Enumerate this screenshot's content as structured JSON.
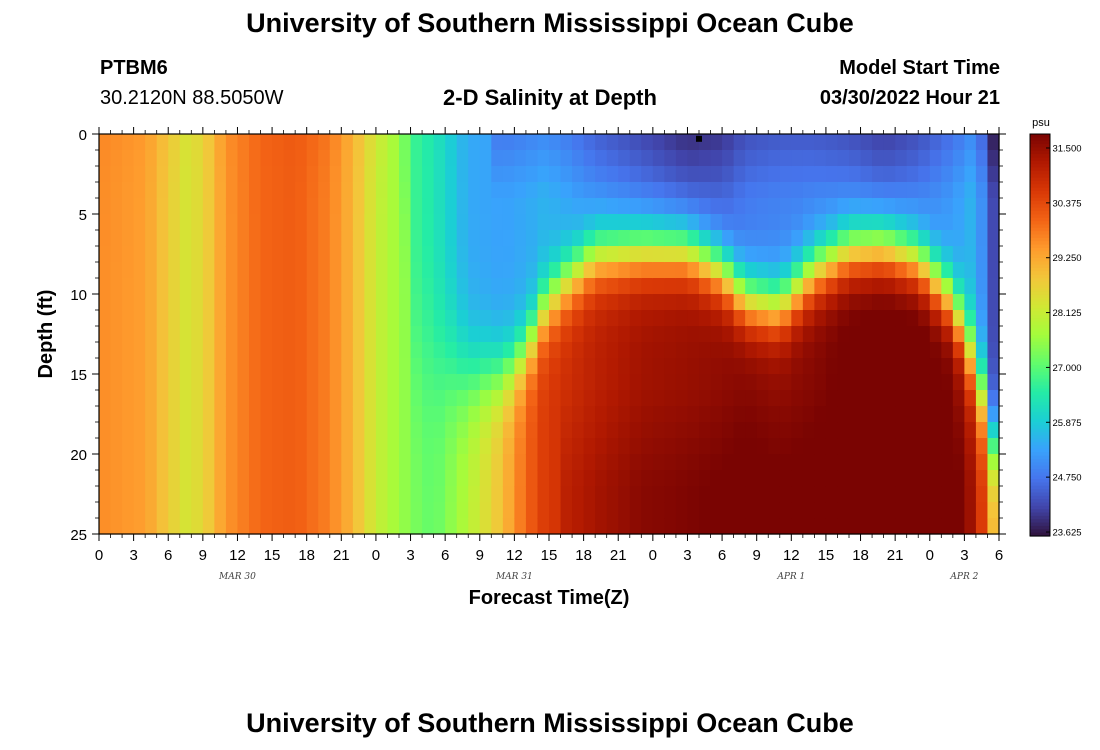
{
  "page": {
    "title_top": "University of Southern Mississippi Ocean Cube",
    "title_bottom": "University of Southern Mississippi Ocean Cube",
    "station_id": "PTBM6",
    "station_coords": "30.2120N  88.5050W",
    "plot_title": "2-D Salinity at Depth",
    "model_start_label": "Model Start Time",
    "model_start_value": "03/30/2022 Hour 21"
  },
  "colors": {
    "background": "#ffffff",
    "palette": [
      "#30123b",
      "#4145ab",
      "#4675ed",
      "#39a2fc",
      "#1bcfd4",
      "#24eca6",
      "#61fc6c",
      "#a4fc3b",
      "#d1e834",
      "#f3c63a",
      "#fe9b2d",
      "#f36315",
      "#d93806",
      "#b11901",
      "#7a0402"
    ]
  },
  "chart_data": {
    "type": "heatmap",
    "xlabel": "Forecast Time(Z)",
    "ylabel": "Depth (ft)",
    "colorbar_label": "psu",
    "colorbar_range": [
      23.625,
      31.5
    ],
    "colorbar_ticks": [
      "31.500",
      "30.375",
      "29.250",
      "28.125",
      "27.000",
      "25.875",
      "24.750",
      "23.625"
    ],
    "x_hours_range": [
      0,
      78
    ],
    "x_ticks": [
      "0",
      "3",
      "6",
      "9",
      "12",
      "15",
      "18",
      "21",
      "0",
      "3",
      "6",
      "9",
      "12",
      "15",
      "18",
      "21",
      "0",
      "3",
      "6",
      "9",
      "12",
      "15",
      "18",
      "21",
      "0",
      "3",
      "6"
    ],
    "date_labels": [
      {
        "label": "MAR 30",
        "hour": 12
      },
      {
        "label": "MAR 31",
        "hour": 36
      },
      {
        "label": "APR 1",
        "hour": 60
      },
      {
        "label": "APR 2",
        "hour": 75
      }
    ],
    "y_range": [
      0,
      25
    ],
    "y_ticks": [
      "0",
      "5",
      "10",
      "15",
      "20",
      "25"
    ],
    "grid": false,
    "grid_time_step_hours": 1,
    "grid_depth_step_ft": 1,
    "profiles": [
      {
        "hour": 0,
        "surface": 29.5,
        "deep": 29.4,
        "cline": 0,
        "width": 3
      },
      {
        "hour": 4,
        "surface": 29.3,
        "deep": 29.2,
        "cline": 0,
        "width": 3
      },
      {
        "hour": 6,
        "surface": 28.8,
        "deep": 28.6,
        "cline": 0,
        "width": 3
      },
      {
        "hour": 7.5,
        "surface": 28.3,
        "deep": 28.2,
        "cline": 0,
        "width": 3
      },
      {
        "hour": 9,
        "surface": 28.5,
        "deep": 28.4,
        "cline": 0,
        "width": 3
      },
      {
        "hour": 11,
        "surface": 29.4,
        "deep": 29.3,
        "cline": 0,
        "width": 3
      },
      {
        "hour": 14,
        "surface": 29.8,
        "deep": 29.8,
        "cline": 0,
        "width": 3
      },
      {
        "hour": 17,
        "surface": 30.0,
        "deep": 29.9,
        "cline": 0,
        "width": 3
      },
      {
        "hour": 20,
        "surface": 29.7,
        "deep": 29.5,
        "cline": 0,
        "width": 3
      },
      {
        "hour": 22,
        "surface": 29.0,
        "deep": 28.9,
        "cline": 0,
        "width": 3
      },
      {
        "hour": 24,
        "surface": 28.3,
        "deep": 28.0,
        "cline": 0,
        "width": 3
      },
      {
        "hour": 26,
        "surface": 27.4,
        "deep": 27.5,
        "cline": 0,
        "width": 3
      },
      {
        "hour": 27.5,
        "surface": 26.6,
        "deep": 27.2,
        "cline": 14,
        "width": 6
      },
      {
        "hour": 29,
        "surface": 26.3,
        "deep": 27.0,
        "cline": 14,
        "width": 6
      },
      {
        "hour": 32,
        "surface": 25.4,
        "deep": 27.8,
        "cline": 15,
        "width": 4
      },
      {
        "hour": 35,
        "surface": 25.3,
        "deep": 28.8,
        "cline": 15,
        "width": 3
      },
      {
        "hour": 37,
        "surface": 25.4,
        "deep": 29.8,
        "cline": 13.5,
        "width": 2.5
      },
      {
        "hour": 38.5,
        "surface": 25.5,
        "deep": 30.3,
        "cline": 11,
        "width": 2.5
      },
      {
        "hour": 40,
        "surface": 25.4,
        "deep": 30.5,
        "cline": 9.5,
        "width": 2.5
      },
      {
        "hour": 43,
        "surface": 25.0,
        "deep": 30.8,
        "cline": 7.5,
        "width": 2.5
      },
      {
        "hour": 47,
        "surface": 24.7,
        "deep": 31.1,
        "cline": 7.2,
        "width": 2.5
      },
      {
        "hour": 51,
        "surface": 24.4,
        "deep": 31.2,
        "cline": 7.2,
        "width": 2.5
      },
      {
        "hour": 54,
        "surface": 24.5,
        "deep": 31.3,
        "cline": 8.5,
        "width": 2.5
      },
      {
        "hour": 56,
        "surface": 24.8,
        "deep": 31.4,
        "cline": 10.3,
        "width": 2.5
      },
      {
        "hour": 59,
        "surface": 24.9,
        "deep": 31.3,
        "cline": 10.8,
        "width": 2.5
      },
      {
        "hour": 62,
        "surface": 24.9,
        "deep": 31.4,
        "cline": 8.5,
        "width": 2.5
      },
      {
        "hour": 65,
        "surface": 24.8,
        "deep": 31.6,
        "cline": 7.2,
        "width": 2.5
      },
      {
        "hour": 68,
        "surface": 24.6,
        "deep": 31.7,
        "cline": 7.0,
        "width": 2.5
      },
      {
        "hour": 71,
        "surface": 24.8,
        "deep": 31.7,
        "cline": 7.8,
        "width": 2.5
      },
      {
        "hour": 74,
        "surface": 25.2,
        "deep": 31.5,
        "cline": 10.5,
        "width": 2.5
      },
      {
        "hour": 76,
        "surface": 25.6,
        "deep": 30.7,
        "cline": 14.5,
        "width": 3
      },
      {
        "hour": 77,
        "surface": 24.6,
        "deep": 29.5,
        "cline": 17.5,
        "width": 3
      },
      {
        "hour": 78,
        "surface": 23.9,
        "deep": 27.8,
        "cline": 21,
        "width": 3
      }
    ],
    "markers": [
      {
        "hour": 52,
        "depth": 0.3
      }
    ]
  }
}
